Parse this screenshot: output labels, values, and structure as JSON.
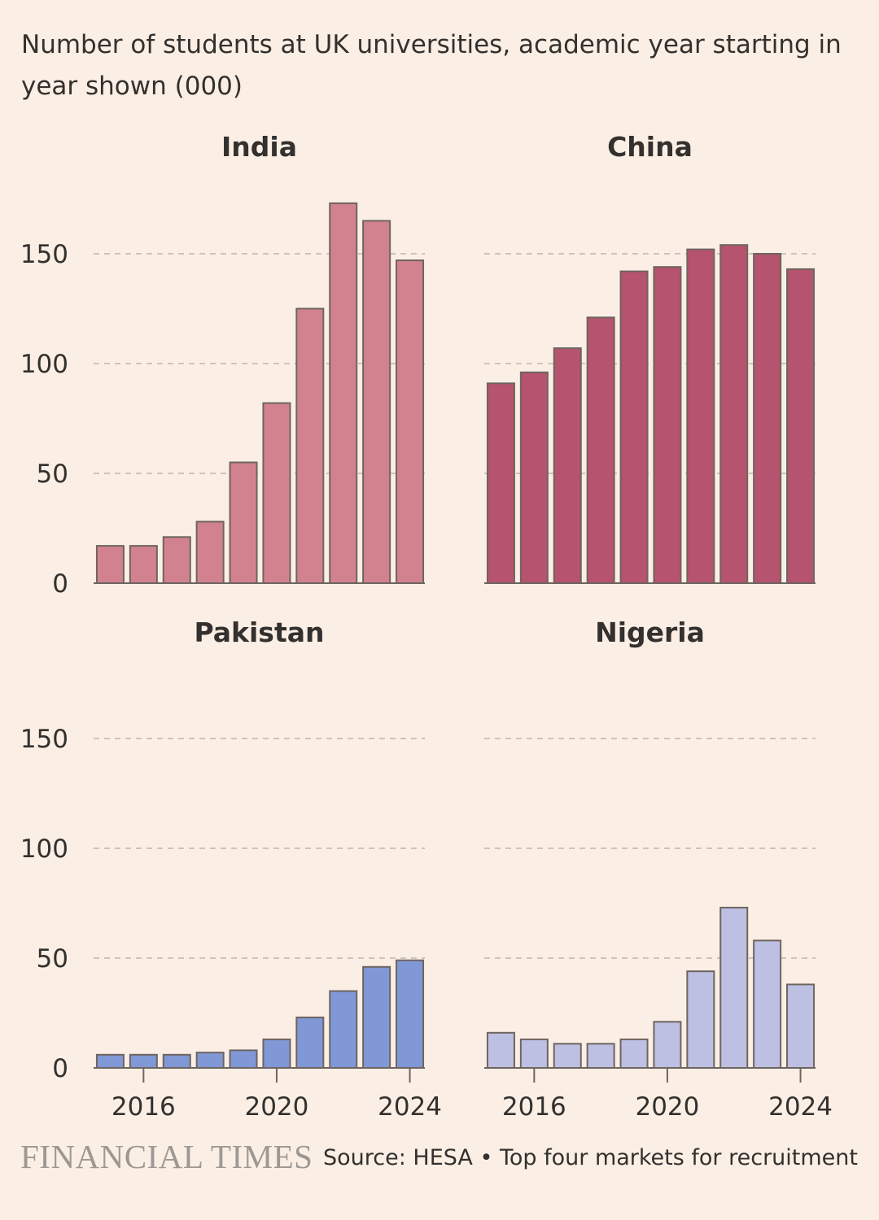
{
  "subtitle": "Number of students at UK universities, academic year starting in year shown (000)",
  "footer": {
    "logo": "FINANCIAL TIMES",
    "source": "Source: HESA • Top four markets for recruitment"
  },
  "chart_data": [
    {
      "type": "bar",
      "title": "India",
      "color": "#D2828F",
      "x": [
        2015,
        2016,
        2017,
        2018,
        2019,
        2020,
        2021,
        2022,
        2023,
        2024
      ],
      "values": [
        17,
        17,
        21,
        28,
        55,
        82,
        125,
        173,
        165,
        147
      ],
      "ylim": [
        0,
        175
      ],
      "yticks": [
        0,
        50,
        100,
        150
      ],
      "xticks": [],
      "show_yticks": true
    },
    {
      "type": "bar",
      "title": "China",
      "color": "#B6536F",
      "x": [
        2015,
        2016,
        2017,
        2018,
        2019,
        2020,
        2021,
        2022,
        2023,
        2024
      ],
      "values": [
        91,
        96,
        107,
        121,
        142,
        144,
        152,
        154,
        150,
        143
      ],
      "ylim": [
        0,
        175
      ],
      "yticks": [
        0,
        50,
        100,
        150
      ],
      "xticks": [],
      "show_yticks": false
    },
    {
      "type": "bar",
      "title": "Pakistan",
      "color": "#8098D6",
      "x": [
        2015,
        2016,
        2017,
        2018,
        2019,
        2020,
        2021,
        2022,
        2023,
        2024
      ],
      "values": [
        6,
        6,
        6,
        7,
        8,
        13,
        23,
        35,
        46,
        49
      ],
      "ylim": [
        0,
        175
      ],
      "yticks": [
        0,
        50,
        100,
        150
      ],
      "xticks": [
        2016,
        2020,
        2024
      ],
      "show_yticks": true
    },
    {
      "type": "bar",
      "title": "Nigeria",
      "color": "#BDC0E2",
      "x": [
        2015,
        2016,
        2017,
        2018,
        2019,
        2020,
        2021,
        2022,
        2023,
        2024
      ],
      "values": [
        16,
        13,
        11,
        11,
        13,
        21,
        44,
        73,
        58,
        38
      ],
      "ylim": [
        0,
        175
      ],
      "yticks": [
        0,
        50,
        100,
        150
      ],
      "xticks": [
        2016,
        2020,
        2024
      ],
      "show_yticks": false
    }
  ]
}
